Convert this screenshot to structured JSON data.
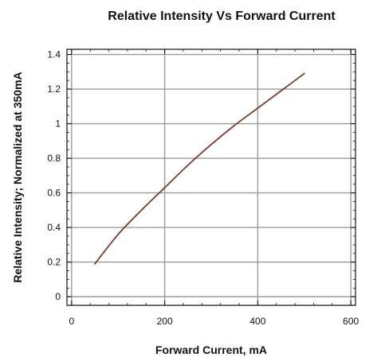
{
  "chart_data": {
    "type": "line",
    "title": "Relative Intensity Vs Forward Current",
    "xlabel": "Forward Current, mA",
    "ylabel": "Relative Intensity; Normalized at 350mA",
    "xlim": [
      -10,
      610
    ],
    "ylim": [
      -0.05,
      1.43
    ],
    "xticks": [
      0,
      200,
      400,
      600
    ],
    "xtick_labels": [
      "0",
      "200",
      "400",
      "600"
    ],
    "yticks": [
      0,
      0.2,
      0.4,
      0.6,
      0.8,
      1.0,
      1.2,
      1.4
    ],
    "ytick_labels": [
      "0",
      "0.2",
      "0.4",
      "0.6",
      "0.8",
      "1",
      "1.2",
      "1.4"
    ],
    "grid": true,
    "series": [
      {
        "x": [
          50,
          100,
          150,
          200,
          250,
          300,
          350,
          400,
          450,
          500
        ],
        "y": [
          0.19,
          0.36,
          0.5,
          0.63,
          0.76,
          0.88,
          0.99,
          1.09,
          1.19,
          1.29
        ]
      }
    ],
    "colors": {
      "line": "#7a3b2e",
      "grid": "#9a9a9a",
      "frame": "#111111",
      "text": "#111111"
    }
  }
}
